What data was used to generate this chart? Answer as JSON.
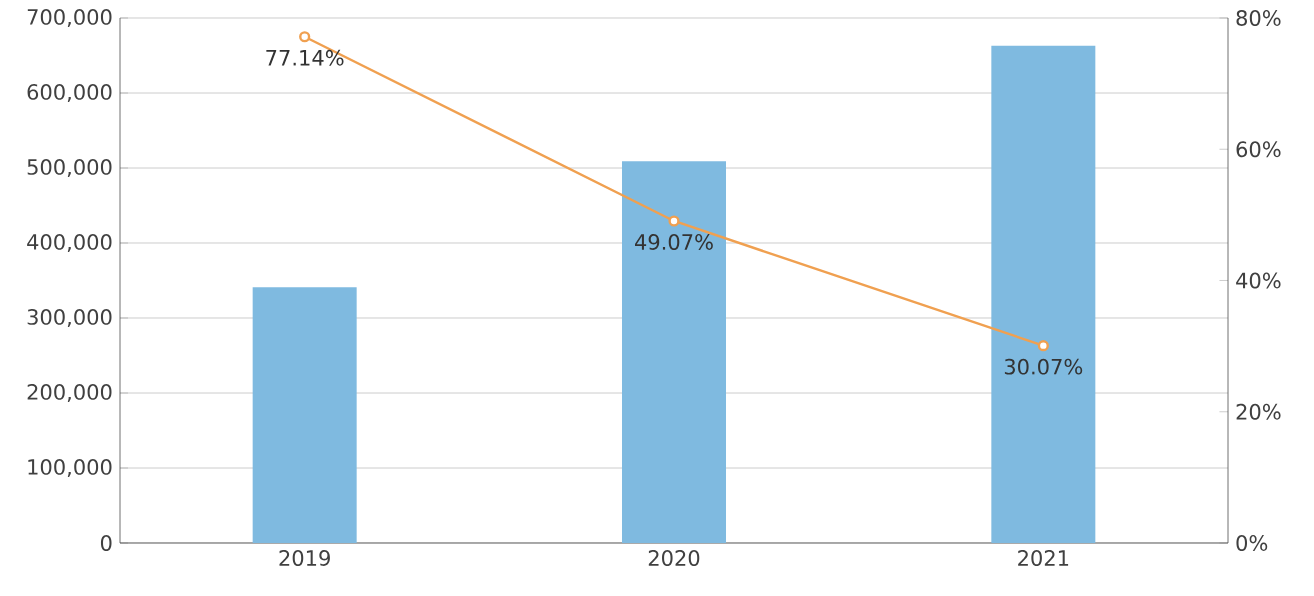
{
  "chart_data": {
    "type": "bar",
    "categories": [
      "2019",
      "2020",
      "2021"
    ],
    "series": [
      {
        "color": "#7fbae0",
        "values": [
          341000,
          509000,
          663000
        ]
      },
      {
        "type": "line",
        "axis": "y2",
        "color": "#f0a050",
        "marker": "circle",
        "values": [
          77.14,
          49.07,
          30.07
        ],
        "value_labels": [
          "77.14%",
          "49.07%",
          "30.07%"
        ]
      }
    ],
    "ylim": [
      0,
      700000
    ],
    "yticks": [
      {
        "value": 0,
        "label": "0"
      },
      {
        "value": 100000,
        "label": "100,000"
      },
      {
        "value": 200000,
        "label": "200,000"
      },
      {
        "value": 300000,
        "label": "300,000"
      },
      {
        "value": 400000,
        "label": "400,000"
      },
      {
        "value": 500000,
        "label": "500,000"
      },
      {
        "value": 600000,
        "label": "600,000"
      },
      {
        "value": 700000,
        "label": "700,000"
      }
    ],
    "y2lim": [
      0,
      80
    ],
    "y2ticks": [
      {
        "value": 0,
        "label": "0%"
      },
      {
        "value": 20,
        "label": "20%"
      },
      {
        "value": 40,
        "label": "40%"
      },
      {
        "value": 60,
        "label": "60%"
      },
      {
        "value": 80,
        "label": "80%"
      }
    ],
    "grid": "y"
  }
}
